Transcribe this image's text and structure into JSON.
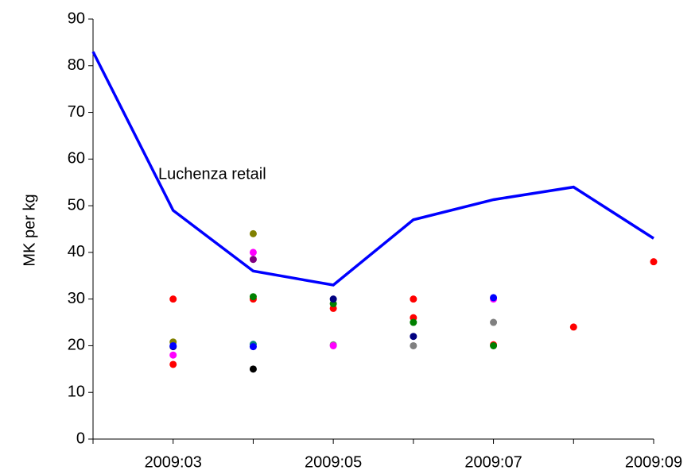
{
  "chart_data": {
    "type": "line",
    "ylabel": "MK per kg",
    "categories": [
      null,
      "2009:03",
      null,
      "2009:05",
      null,
      "2009:07",
      null,
      "2009:09"
    ],
    "ylim": [
      0,
      90
    ],
    "yticks": [
      0,
      10,
      20,
      30,
      40,
      50,
      60,
      70,
      80,
      90
    ],
    "series": [
      {
        "name": "Luchenza retail",
        "type": "line",
        "color": "#0000ff",
        "values": [
          83,
          49,
          36,
          33,
          47,
          51.3,
          54,
          43
        ]
      },
      {
        "type": "scatter",
        "color": "#ff0000",
        "values": [
          null,
          30,
          30,
          28,
          30,
          20.2,
          24,
          38
        ]
      },
      {
        "type": "scatter",
        "color": "#ff0000",
        "values": [
          null,
          16,
          null,
          null,
          26,
          null,
          null,
          null
        ]
      },
      {
        "type": "scatter",
        "color": "#808000",
        "values": [
          null,
          20.8,
          44,
          null,
          null,
          null,
          null,
          null
        ]
      },
      {
        "type": "scatter",
        "color": "#808080",
        "values": [
          null,
          null,
          null,
          20.2,
          20,
          25,
          null,
          null
        ]
      },
      {
        "type": "scatter",
        "color": "#008000",
        "values": [
          null,
          null,
          30.5,
          29,
          25,
          20,
          null,
          null
        ]
      },
      {
        "type": "scatter",
        "color": "#ff00ff",
        "values": [
          null,
          18,
          40,
          20,
          null,
          30,
          null,
          null
        ]
      },
      {
        "type": "scatter",
        "color": "#800080",
        "values": [
          null,
          null,
          38.5,
          null,
          null,
          null,
          null,
          null
        ]
      },
      {
        "type": "scatter",
        "color": "#008080",
        "values": [
          null,
          null,
          20.3,
          null,
          null,
          null,
          null,
          null
        ]
      },
      {
        "type": "scatter",
        "color": "#000000",
        "values": [
          null,
          null,
          15,
          null,
          null,
          null,
          null,
          null
        ]
      },
      {
        "type": "scatter",
        "color": "#000080",
        "values": [
          null,
          19.8,
          null,
          30,
          22,
          null,
          null,
          null
        ]
      },
      {
        "type": "scatter",
        "color": "#0000ff",
        "values": [
          null,
          20,
          19.8,
          null,
          null,
          30.3,
          null,
          null
        ]
      }
    ]
  }
}
